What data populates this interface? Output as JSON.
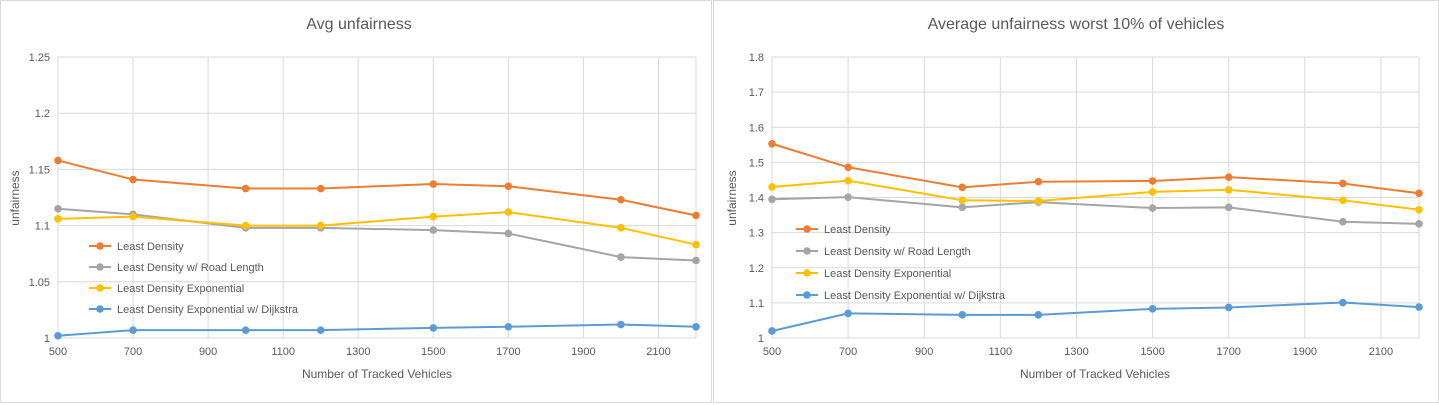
{
  "chart_data": [
    {
      "type": "line",
      "title": "Avg unfairness",
      "xlabel": "Number of Tracked Vehicles",
      "ylabel": "unfairness",
      "xlim": [
        500,
        2200
      ],
      "ylim": [
        1,
        1.25
      ],
      "xticks": [
        500,
        700,
        900,
        1100,
        1300,
        1500,
        1700,
        1900,
        2100
      ],
      "yticks": [
        1,
        1.05,
        1.1,
        1.15,
        1.2,
        1.25
      ],
      "ytick_labels": [
        "1",
        "1.05",
        "1.1",
        "1.15",
        "1.2",
        "1.25"
      ],
      "grid": true,
      "legend_position": "left, inside plot",
      "x": [
        500,
        700,
        1000,
        1200,
        1500,
        1700,
        2000,
        2200
      ],
      "series": [
        {
          "name": "Least Density",
          "color": "#ED7D31",
          "values": [
            1.158,
            1.141,
            1.133,
            1.133,
            1.137,
            1.135,
            1.123,
            1.109
          ]
        },
        {
          "name": "Least Density w/ Road Length",
          "color": "#A5A5A5",
          "values": [
            1.115,
            1.11,
            1.098,
            1.098,
            1.096,
            1.093,
            1.072,
            1.069
          ]
        },
        {
          "name": "Least Density Exponential",
          "color": "#FFC000",
          "values": [
            1.106,
            1.108,
            1.1,
            1.1,
            1.108,
            1.112,
            1.098,
            1.083
          ]
        },
        {
          "name": "Least Density Exponential w/ Dijkstra",
          "color": "#5B9BD5",
          "values": [
            1.002,
            1.007,
            1.007,
            1.007,
            1.009,
            1.01,
            1.012,
            1.01
          ]
        }
      ]
    },
    {
      "type": "line",
      "title": "Average unfairness worst 10% of vehicles",
      "xlabel": "Number of Tracked Vehicles",
      "ylabel": "unfairness",
      "xlim": [
        500,
        2200
      ],
      "ylim": [
        1,
        1.8
      ],
      "xticks": [
        500,
        700,
        900,
        1100,
        1300,
        1500,
        1700,
        1900,
        2100
      ],
      "yticks": [
        1,
        1.1,
        1.2,
        1.3,
        1.4,
        1.5,
        1.6,
        1.7,
        1.8
      ],
      "ytick_labels": [
        "1",
        "1.1",
        "1.2",
        "1.3",
        "1.4",
        "1.5",
        "1.6",
        "1.7",
        "1.8"
      ],
      "grid": true,
      "legend_position": "left, inside plot",
      "x": [
        500,
        700,
        1000,
        1200,
        1500,
        1700,
        2000,
        2200
      ],
      "series": [
        {
          "name": "Least Density",
          "color": "#ED7D31",
          "values": [
            1.553,
            1.486,
            1.429,
            1.445,
            1.447,
            1.458,
            1.44,
            1.412
          ]
        },
        {
          "name": "Least Density w/ Road Length",
          "color": "#A5A5A5",
          "values": [
            1.395,
            1.401,
            1.372,
            1.387,
            1.37,
            1.372,
            1.331,
            1.325
          ]
        },
        {
          "name": "Least Density Exponential",
          "color": "#FFC000",
          "values": [
            1.43,
            1.448,
            1.392,
            1.39,
            1.416,
            1.422,
            1.392,
            1.365
          ]
        },
        {
          "name": "Least Density Exponential w/ Dijkstra",
          "color": "#5B9BD5",
          "values": [
            1.02,
            1.07,
            1.066,
            1.066,
            1.083,
            1.087,
            1.101,
            1.088
          ]
        }
      ]
    }
  ]
}
